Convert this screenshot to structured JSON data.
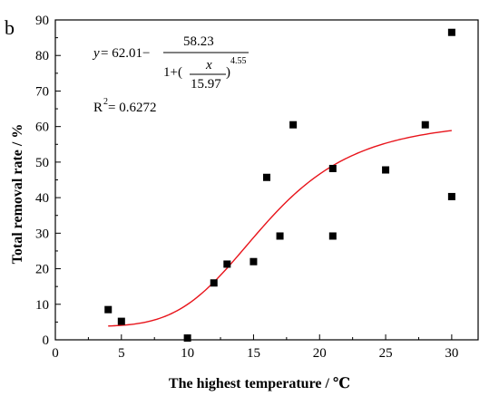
{
  "panel_label": "b",
  "equation": {
    "y": "y",
    "eq_sign": " = 62.01−",
    "numerator": "58.23",
    "denom_prefix": "1+(",
    "x": "x",
    "inner_den": "15.97",
    "close": ")",
    "exponent": "4.55"
  },
  "r2": {
    "label": "R",
    "sup": "2",
    "value": " = 0.6272"
  },
  "chart_data": {
    "type": "scatter",
    "xlabel": "The highest temperature / ℃",
    "ylabel": "Total removal rate / %",
    "xlim": [
      0,
      32
    ],
    "ylim": [
      0,
      90
    ],
    "xticks": [
      0,
      5,
      10,
      15,
      20,
      25,
      30
    ],
    "yticks": [
      0,
      10,
      20,
      30,
      40,
      50,
      60,
      70,
      80,
      90
    ],
    "grid": false,
    "points": [
      {
        "x": 4,
        "y": 8.5
      },
      {
        "x": 5,
        "y": 5.2
      },
      {
        "x": 10,
        "y": 0.5
      },
      {
        "x": 12,
        "y": 16
      },
      {
        "x": 13,
        "y": 21.3
      },
      {
        "x": 15,
        "y": 22
      },
      {
        "x": 16,
        "y": 45.7
      },
      {
        "x": 17,
        "y": 29.2
      },
      {
        "x": 18,
        "y": 60.5
      },
      {
        "x": 21,
        "y": 48.2
      },
      {
        "x": 21,
        "y": 29.2
      },
      {
        "x": 25,
        "y": 47.8
      },
      {
        "x": 28,
        "y": 60.5
      },
      {
        "x": 30,
        "y": 86.5
      },
      {
        "x": 30,
        "y": 40.3
      }
    ],
    "fit": {
      "model": "y = 62.01 - 58.23/(1+(x/15.97)^4.55)",
      "a": 62.01,
      "b": 58.23,
      "x0": 15.97,
      "p": 4.55,
      "x_range": [
        4,
        30
      ]
    },
    "colors": {
      "points": "#000000",
      "fit_line": "#e8141b",
      "axes": "#000000"
    }
  }
}
